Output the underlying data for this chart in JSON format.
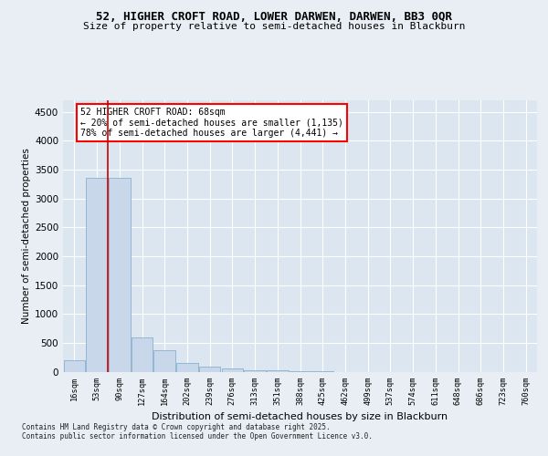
{
  "title1": "52, HIGHER CROFT ROAD, LOWER DARWEN, DARWEN, BB3 0QR",
  "title2": "Size of property relative to semi-detached houses in Blackburn",
  "xlabel": "Distribution of semi-detached houses by size in Blackburn",
  "ylabel": "Number of semi-detached properties",
  "footer1": "Contains HM Land Registry data © Crown copyright and database right 2025.",
  "footer2": "Contains public sector information licensed under the Open Government Licence v3.0.",
  "annotation_title": "52 HIGHER CROFT ROAD: 68sqm",
  "annotation_line1": "← 20% of semi-detached houses are smaller (1,135)",
  "annotation_line2": "78% of semi-detached houses are larger (4,441) →",
  "bar_color": "#c8d8ea",
  "bar_edge_color": "#8ab0cc",
  "red_line_color": "#cc0000",
  "background_color": "#e8eef4",
  "plot_bg_color": "#dce6f0",
  "grid_color": "#ffffff",
  "categories": [
    "16sqm",
    "53sqm",
    "90sqm",
    "127sqm",
    "164sqm",
    "202sqm",
    "239sqm",
    "276sqm",
    "313sqm",
    "351sqm",
    "388sqm",
    "425sqm",
    "462sqm",
    "499sqm",
    "537sqm",
    "574sqm",
    "611sqm",
    "648sqm",
    "686sqm",
    "723sqm",
    "760sqm"
  ],
  "values": [
    200,
    3350,
    3350,
    600,
    370,
    150,
    90,
    55,
    30,
    25,
    10,
    5,
    0,
    0,
    0,
    0,
    0,
    0,
    0,
    0,
    0
  ],
  "red_line_x": 1.5,
  "ylim": [
    0,
    4700
  ],
  "yticks": [
    0,
    500,
    1000,
    1500,
    2000,
    2500,
    3000,
    3500,
    4000,
    4500
  ]
}
